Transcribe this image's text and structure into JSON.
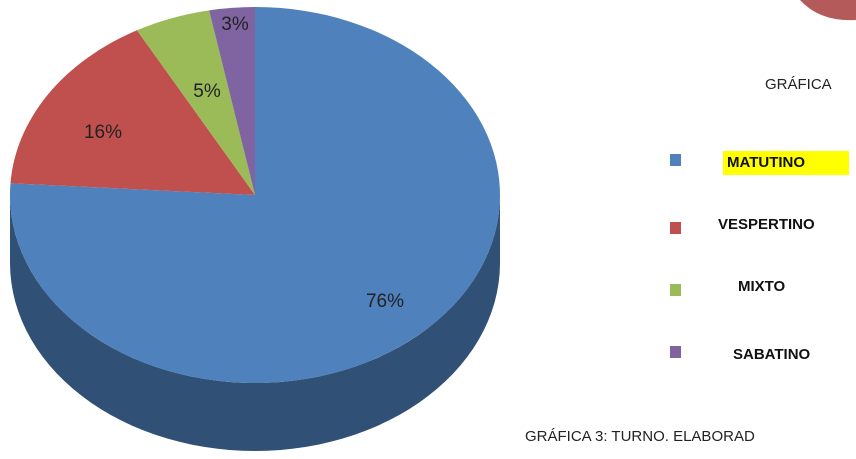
{
  "chart_data": {
    "type": "pie",
    "title": "GRÁFICA",
    "caption": "GRÁFICA 3: TURNO. ELABORAD",
    "categories": [
      "MATUTINO",
      "VESPERTINO",
      "MIXTO",
      "SABATINO"
    ],
    "values": [
      76,
      16,
      5,
      3
    ],
    "value_labels": [
      "76%",
      "16%",
      "5%",
      "3%"
    ],
    "colors": [
      "#4f81bd",
      "#c0504d",
      "#9bbb59",
      "#8064a2"
    ],
    "legend": "right"
  }
}
